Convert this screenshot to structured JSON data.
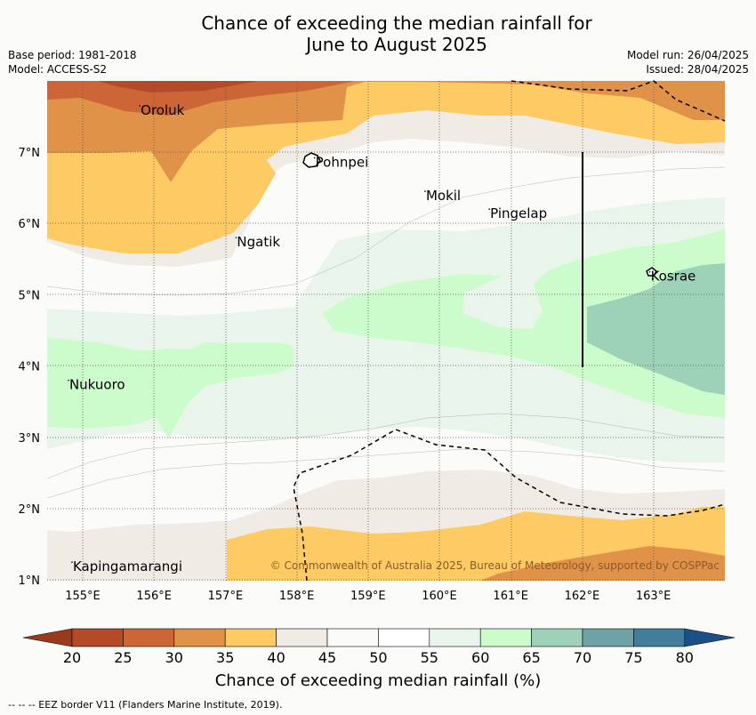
{
  "title_line1": "Chance of exceeding the median rainfall for",
  "title_line2": "June to August 2025",
  "base_period": "Base period: 1981-2018",
  "model": "Model: ACCESS-S2",
  "model_run": "Model run: 26/04/2025",
  "issued": "Issued: 28/04/2025",
  "copyright": "© Commonwealth of Australia 2025, Bureau of Meteorology, supported by COSPPac",
  "footer": "--  --  -- EEZ border V11 (Flanders Marine Institute, 2019).",
  "colorbar_label": "Chance of exceeding median rainfall (%)",
  "lat_ticks": [
    "7°N",
    "6°N",
    "5°N",
    "4°N",
    "3°N",
    "2°N",
    "1°N"
  ],
  "lon_ticks": [
    "155°E",
    "156°E",
    "157°E",
    "158°E",
    "159°E",
    "160°E",
    "161°E",
    "162°E",
    "163°E"
  ],
  "places": [
    {
      "name": "Oroluk",
      "lon": 155.8,
      "lat": 7.65
    },
    {
      "name": "Pohnpei",
      "lon": 158.25,
      "lat": 6.92
    },
    {
      "name": "Mokil",
      "lon": 159.8,
      "lat": 6.45
    },
    {
      "name": "Pingelap",
      "lon": 160.7,
      "lat": 6.2
    },
    {
      "name": "Ngatik",
      "lon": 157.15,
      "lat": 5.8
    },
    {
      "name": "Kosrae",
      "lon": 162.95,
      "lat": 5.32
    },
    {
      "name": "Nukuoro",
      "lon": 154.8,
      "lat": 3.8
    },
    {
      "name": "Kapingamarangi",
      "lon": 154.85,
      "lat": 1.25
    }
  ],
  "colorbar": {
    "ticks": [
      "20",
      "25",
      "30",
      "35",
      "40",
      "45",
      "50",
      "55",
      "60",
      "65",
      "70",
      "75",
      "80"
    ],
    "colors": [
      "#b44a28",
      "#cd6636",
      "#e09248",
      "#fdca63",
      "#f1ebe6",
      "#fbfcfa",
      "#ffffff",
      "#e9f5ea",
      "#ccfccc",
      "#9dd1b8",
      "#6fa2a6",
      "#437d9b"
    ],
    "under_color": "#9a3a1c",
    "over_color": "#1b4f88"
  }
}
